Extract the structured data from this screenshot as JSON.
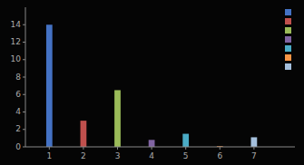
{
  "chart_data": {
    "type": "bar",
    "x": [
      1,
      2,
      3,
      4,
      5,
      6,
      7
    ],
    "values": [
      14,
      3,
      6.5,
      0.8,
      1.5,
      0.08,
      1.1
    ],
    "colors": [
      "#4472c4",
      "#c0504d",
      "#9bbb59",
      "#8064a2",
      "#4bacc6",
      "#f79646",
      "#a5c0dd"
    ],
    "xlim": [
      0.3,
      8.2
    ],
    "xticks": [
      1,
      2,
      3,
      4,
      5,
      6,
      7
    ],
    "ylim": [
      0,
      16
    ],
    "yticks": [
      0,
      2,
      4,
      6,
      8,
      10,
      12,
      14
    ],
    "grid": false,
    "legend": "upper right"
  }
}
